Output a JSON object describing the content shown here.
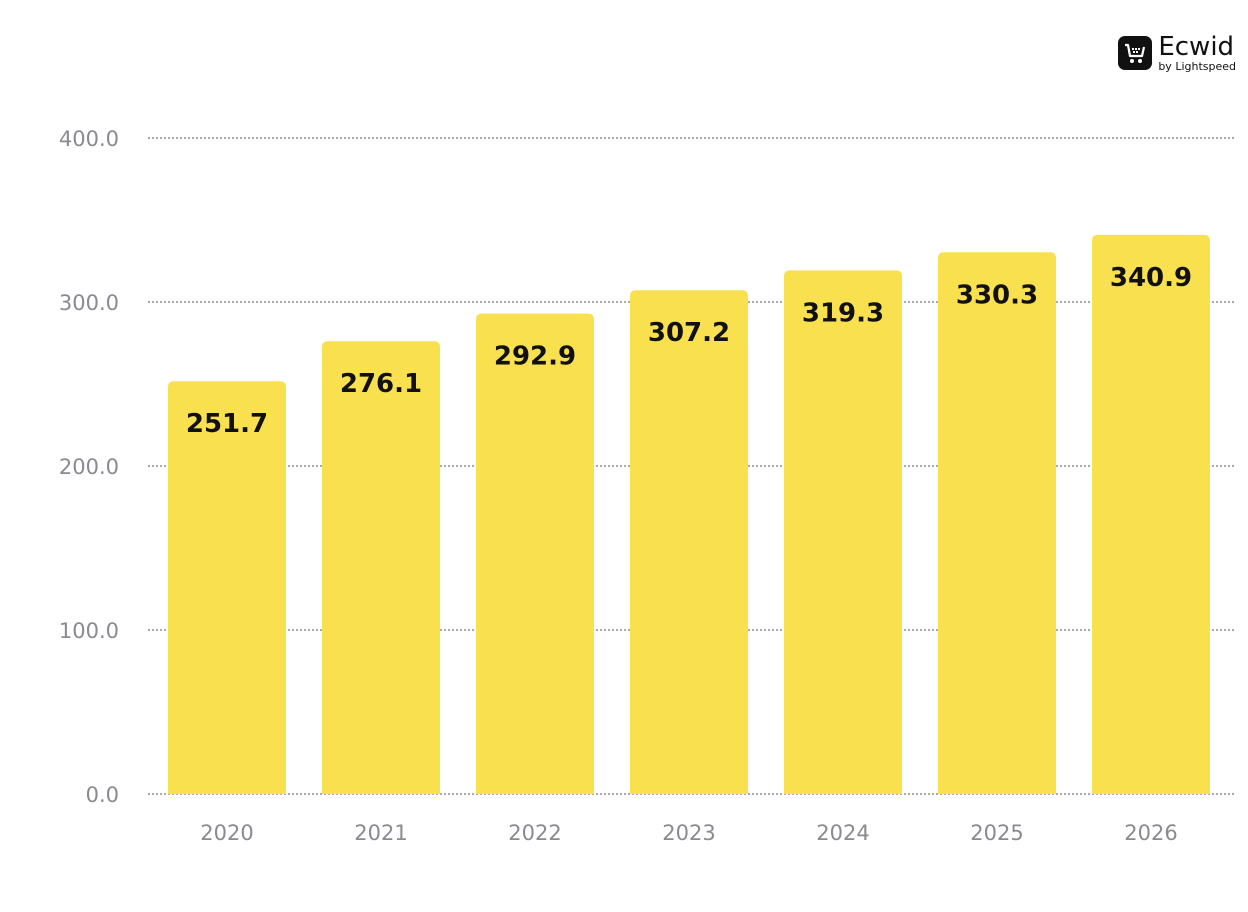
{
  "brand": {
    "name": "Ecwid",
    "sub": "by Lightspeed"
  },
  "chart_data": {
    "type": "bar",
    "title": "",
    "xlabel": "",
    "ylabel": "",
    "categories": [
      "2020",
      "2021",
      "2022",
      "2023",
      "2024",
      "2025",
      "2026"
    ],
    "values": [
      251.7,
      276.1,
      292.9,
      307.2,
      319.3,
      330.3,
      340.9
    ],
    "data_labels": [
      "251.7",
      "276.1",
      "292.9",
      "307.2",
      "319.3",
      "330.3",
      "340.9"
    ],
    "ylim": [
      0,
      400
    ],
    "yticks": [
      0,
      100,
      200,
      300,
      400
    ],
    "ytick_labels": [
      "0.0",
      "100.0",
      "200.0",
      "300.0",
      "400.0"
    ],
    "grid": true,
    "bar_color": "#F9E04F"
  }
}
